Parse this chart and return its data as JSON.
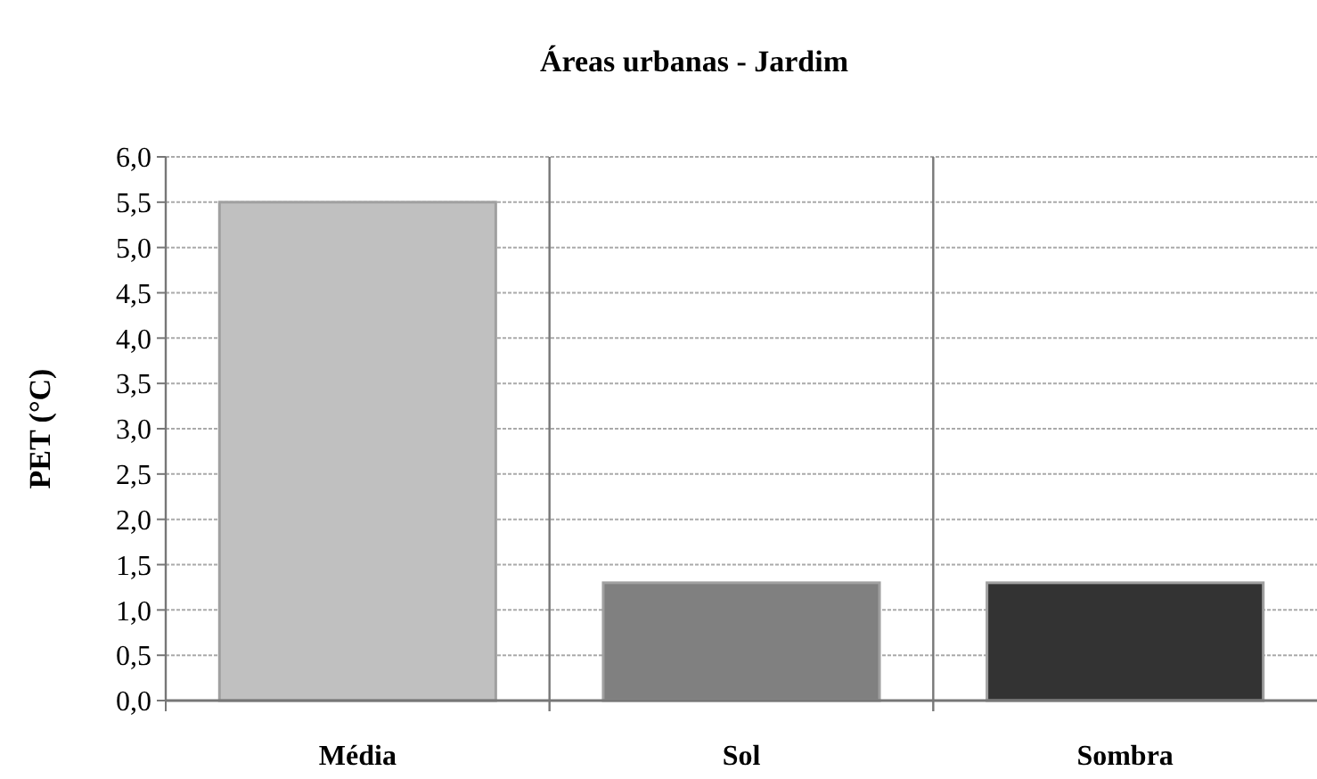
{
  "chart_data": {
    "type": "bar",
    "title": "Áreas urbanas - Jardim",
    "ylabel": "PET (°C)",
    "categories": [
      "Média",
      "Sol",
      "Sombra"
    ],
    "values": [
      5.5,
      1.3,
      1.3
    ],
    "colors": [
      "#c0c0c0",
      "#808080",
      "#333333"
    ],
    "ylim": [
      0,
      6
    ],
    "yticks": [
      {
        "value": 0,
        "label": "0,0"
      },
      {
        "value": 0.5,
        "label": "0,5"
      },
      {
        "value": 1,
        "label": "1,0"
      },
      {
        "value": 1.5,
        "label": "1,5"
      },
      {
        "value": 2,
        "label": "2,0"
      },
      {
        "value": 2.5,
        "label": "2,5"
      },
      {
        "value": 3,
        "label": "3,0"
      },
      {
        "value": 3.5,
        "label": "3,5"
      },
      {
        "value": 4,
        "label": "4,0"
      },
      {
        "value": 4.5,
        "label": "4,5"
      },
      {
        "value": 5,
        "label": "5,0"
      },
      {
        "value": 5.5,
        "label": "5,5"
      },
      {
        "value": 6,
        "label": "6,0"
      }
    ],
    "grid": true
  }
}
